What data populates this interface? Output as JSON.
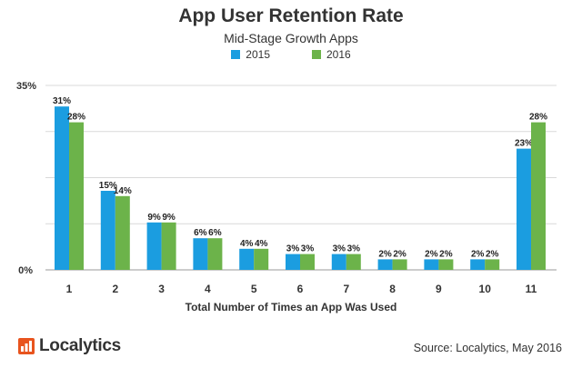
{
  "chart_data": {
    "type": "bar",
    "title": "App User Retention Rate",
    "subtitle": "Mid-Stage Growth Apps",
    "xlabel": "Total Number of Times an App Was Used",
    "ylabel": "",
    "categories": [
      "1",
      "2",
      "3",
      "4",
      "5",
      "6",
      "7",
      "8",
      "9",
      "10",
      "11"
    ],
    "series": [
      {
        "name": "2015",
        "color": "#1b9de0",
        "values": [
          31,
          15,
          9,
          6,
          4,
          3,
          3,
          2,
          2,
          2,
          23
        ]
      },
      {
        "name": "2016",
        "color": "#6cb34a",
        "values": [
          28,
          14,
          9,
          6,
          4,
          3,
          3,
          2,
          2,
          2,
          28
        ]
      }
    ],
    "data_labels": {
      "2015": [
        "31%",
        "15%",
        "9%",
        "6%",
        "4%",
        "3%",
        "3%",
        "2%",
        "2%",
        "2%",
        "23%"
      ],
      "2016": [
        "28%",
        "14%",
        "9%",
        "6%",
        "4%",
        "3%",
        "3%",
        "2%",
        "2%",
        "2%",
        "28%"
      ]
    },
    "ylim": [
      0,
      35
    ],
    "yticks": [
      "0%",
      "35%"
    ],
    "grid": true,
    "legend_position": "top-center"
  },
  "footer": {
    "brand": "Localytics",
    "brand_color": "#e8541e",
    "source": "Source: Localytics, May 2016"
  }
}
